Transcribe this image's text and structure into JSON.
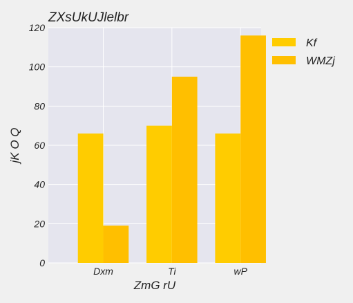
{
  "chart_data": {
    "type": "bar",
    "title": "ZXsUkUJlelbr",
    "xlabel": "ZmG rU",
    "ylabel": "jK O Q",
    "categories": [
      "Dxm",
      "Ti",
      "wP"
    ],
    "series": [
      {
        "name": "Kf",
        "values": [
          66,
          70,
          66
        ],
        "color": "#ffcc00"
      },
      {
        "name": "WMZj",
        "values": [
          19,
          95,
          116
        ],
        "color": "#ffbf00"
      }
    ],
    "ylim": [
      0,
      120
    ],
    "yticks": [
      0,
      20,
      40,
      60,
      80,
      100,
      120
    ],
    "grid": true,
    "legend_position": "outside-right-top"
  },
  "colors": {
    "plot_background": "#e5e5ee",
    "figure_background": "#f0f0f0",
    "grid": "#ffffff"
  }
}
